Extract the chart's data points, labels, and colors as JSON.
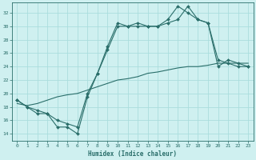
{
  "xlabel": "Humidex (Indice chaleur)",
  "bg_color": "#cff0f0",
  "grid_color": "#aadddd",
  "line_color": "#2a6e6a",
  "xlim": [
    -0.5,
    23.5
  ],
  "ylim": [
    13.0,
    33.5
  ],
  "yticks": [
    14,
    16,
    18,
    20,
    22,
    24,
    26,
    28,
    30,
    32
  ],
  "xticks": [
    0,
    1,
    2,
    3,
    4,
    5,
    6,
    7,
    8,
    9,
    10,
    11,
    12,
    13,
    14,
    15,
    16,
    17,
    18,
    19,
    20,
    21,
    22,
    23
  ],
  "line1_x": [
    0,
    1,
    2,
    3,
    4,
    5,
    6,
    7,
    8,
    9,
    10,
    11,
    12,
    13,
    14,
    15,
    16,
    17,
    18,
    19,
    20,
    21,
    22,
    23
  ],
  "line1_y": [
    19.0,
    18.0,
    17.0,
    17.0,
    15.0,
    15.0,
    14.0,
    19.5,
    23.0,
    27.0,
    30.5,
    30.0,
    30.5,
    30.0,
    30.0,
    31.0,
    33.0,
    32.0,
    31.0,
    30.5,
    25.0,
    24.5,
    24.0,
    24.0
  ],
  "line2_x": [
    0,
    1,
    2,
    3,
    4,
    5,
    6,
    7,
    8,
    9,
    10,
    11,
    12,
    13,
    14,
    15,
    16,
    17,
    18,
    19,
    20,
    21,
    22,
    23
  ],
  "line2_y": [
    18.5,
    18.2,
    18.5,
    19.0,
    19.5,
    19.8,
    20.0,
    20.5,
    21.0,
    21.5,
    22.0,
    22.2,
    22.5,
    23.0,
    23.2,
    23.5,
    23.8,
    24.0,
    24.0,
    24.2,
    24.5,
    24.5,
    24.5,
    24.5
  ],
  "line3_x": [
    0,
    1,
    2,
    3,
    4,
    5,
    6,
    7,
    8,
    9,
    10,
    11,
    12,
    13,
    14,
    15,
    16,
    17,
    18,
    19,
    20,
    21,
    22,
    23
  ],
  "line3_y": [
    19.0,
    18.0,
    17.5,
    17.0,
    16.0,
    15.5,
    15.0,
    20.0,
    23.0,
    26.5,
    30.0,
    30.0,
    30.0,
    30.0,
    30.0,
    30.5,
    31.0,
    33.0,
    31.0,
    30.5,
    24.0,
    25.0,
    24.5,
    24.0
  ]
}
